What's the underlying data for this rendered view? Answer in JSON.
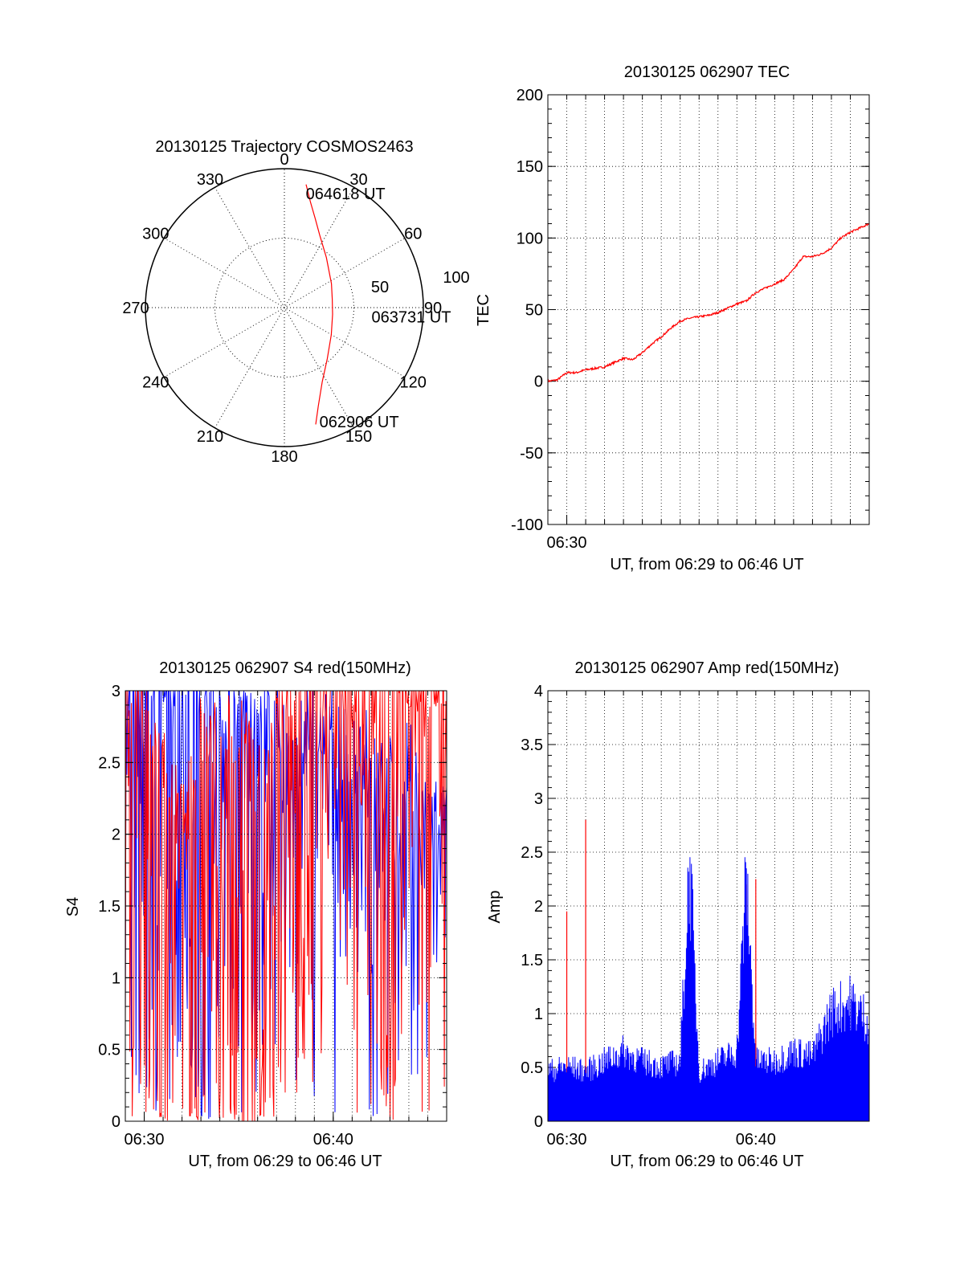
{
  "colors": {
    "red": "#ff0000",
    "blue": "#0000ff",
    "axis": "#000000",
    "grid": "#000000",
    "background": "#ffffff"
  },
  "chart_data": [
    {
      "id": "trajectory",
      "type": "polar",
      "title": "20130125 Trajectory COSMOS2463",
      "azimuth_labels": [
        "0",
        "30",
        "60",
        "90",
        "120",
        "150",
        "180",
        "210",
        "240",
        "270",
        "300",
        "330"
      ],
      "radial_labels": [
        "50",
        "100"
      ],
      "grid": true,
      "series": [
        {
          "color": "red",
          "points": [
            {
              "az": 10,
              "zen": 90
            },
            {
              "az": 14,
              "zen": 78
            },
            {
              "az": 19,
              "zen": 68
            },
            {
              "az": 26,
              "zen": 58
            },
            {
              "az": 40,
              "zen": 47
            },
            {
              "az": 63,
              "zen": 38
            },
            {
              "az": 80,
              "zen": 35
            },
            {
              "az": 98,
              "zen": 35
            },
            {
              "az": 120,
              "zen": 39
            },
            {
              "az": 140,
              "zen": 48
            },
            {
              "az": 153,
              "zen": 60
            },
            {
              "az": 161,
              "zen": 75
            },
            {
              "az": 165,
              "zen": 87
            }
          ]
        }
      ],
      "annotations": [
        {
          "text": "064618 UT",
          "az": 14,
          "zen": 84
        },
        {
          "text": "063731 UT",
          "az": 96,
          "zen": 68
        },
        {
          "text": "062906 UT",
          "az": 160,
          "zen": 88
        }
      ]
    },
    {
      "id": "tec",
      "type": "line",
      "title": "20130125 062907 TEC",
      "xlabel": "UT, from 06:29 to 06:46 UT",
      "ylabel": "TEC",
      "xlim": [
        "06:29",
        "06:46"
      ],
      "ylim": [
        -100,
        200
      ],
      "x_ticks": [
        "06:30"
      ],
      "y_ticks": [
        "-100",
        "-50",
        "0",
        "50",
        "100",
        "150",
        "200"
      ],
      "grid": true,
      "series": [
        {
          "color": "red",
          "x": [
            "06:29:00",
            "06:29:30",
            "06:30:00",
            "06:30:30",
            "06:31:00",
            "06:31:30",
            "06:32:00",
            "06:32:30",
            "06:33:00",
            "06:33:30",
            "06:34:00",
            "06:34:30",
            "06:35:00",
            "06:35:30",
            "06:36:00",
            "06:36:30",
            "06:37:00",
            "06:37:30",
            "06:38:00",
            "06:38:30",
            "06:39:00",
            "06:39:30",
            "06:40:00",
            "06:40:30",
            "06:41:00",
            "06:41:30",
            "06:42:00",
            "06:42:30",
            "06:43:00",
            "06:43:30",
            "06:44:00",
            "06:44:30",
            "06:45:00",
            "06:45:30",
            "06:46:00"
          ],
          "values": [
            0,
            1,
            6,
            6,
            8,
            9,
            10,
            13,
            16,
            15,
            20,
            26,
            31,
            37,
            42,
            44,
            45,
            46,
            48,
            51,
            54,
            56,
            62,
            65,
            68,
            71,
            78,
            87,
            87,
            89,
            93,
            100,
            104,
            107,
            110
          ]
        }
      ]
    },
    {
      "id": "s4",
      "type": "line",
      "title": "20130125 062907 S4 red(150MHz)",
      "xlabel": "UT, from 06:29 to 06:46 UT",
      "ylabel": "S4",
      "xlim": [
        "06:29",
        "06:46"
      ],
      "ylim": [
        0,
        3
      ],
      "x_ticks": [
        "06:30",
        "06:40"
      ],
      "y_ticks": [
        "0",
        "0.5",
        "1",
        "1.5",
        "2",
        "2.5",
        "3"
      ],
      "grid": true,
      "series": [
        {
          "color": "red",
          "x": [
            "06:29:00",
            "06:30:00",
            "06:31:00",
            "06:32:00",
            "06:33:00",
            "06:34:00",
            "06:35:00",
            "06:36:00",
            "06:37:00",
            "06:38:00",
            "06:39:00",
            "06:40:00",
            "06:41:00",
            "06:42:00",
            "06:43:00",
            "06:44:00",
            "06:45:00",
            "06:46:00"
          ],
          "values": [
            3,
            2.6,
            2.2,
            1.9,
            2.4,
            2.3,
            2.5,
            2.0,
            2.7,
            2.8,
            3.0,
            3.0,
            2.8,
            2.9,
            3.0,
            2.9,
            2.8,
            2.9
          ],
          "dropouts": [
            1.2,
            0.5,
            0.0,
            0.3,
            0.0,
            1.5,
            0.0,
            0.0,
            0.4,
            0.8,
            0.3,
            2.0,
            1.6,
            1.9,
            0.0,
            1.6,
            1.8,
            2.3
          ]
        },
        {
          "color": "blue",
          "x": [
            "06:29:00",
            "06:30:00",
            "06:31:00",
            "06:32:00",
            "06:33:00",
            "06:34:00",
            "06:35:00",
            "06:36:00",
            "06:37:00",
            "06:38:00",
            "06:39:00",
            "06:40:00",
            "06:41:00",
            "06:42:00",
            "06:43:00",
            "06:44:00",
            "06:45:00",
            "06:46:00"
          ],
          "values": [
            3,
            3.0,
            2.8,
            2.9,
            2.6,
            2.7,
            2.5,
            2.6,
            2.5,
            2.4,
            2.5,
            2.5,
            2.2,
            2.3,
            2.1,
            2.2,
            1.9,
            1.8
          ],
          "dropouts": [
            2.0,
            1.6,
            0.0,
            1.5,
            0.0,
            1.4,
            0.6,
            0.9,
            1.4,
            0.6,
            1.3,
            1.6,
            1.5,
            1.3,
            1.8,
            1.5,
            1.4,
            1.3
          ]
        }
      ]
    },
    {
      "id": "amp",
      "type": "line",
      "title": "20130125 062907 Amp red(150MHz)",
      "xlabel": "UT, from 06:29 to 06:46 UT",
      "ylabel": "Amp",
      "xlim": [
        "06:29",
        "06:46"
      ],
      "ylim": [
        0,
        4
      ],
      "x_ticks": [
        "06:30",
        "06:40"
      ],
      "y_ticks": [
        "0",
        "0.5",
        "1",
        "1.5",
        "2",
        "2.5",
        "3",
        "3.5",
        "4"
      ],
      "grid": true,
      "series": [
        {
          "color": "blue",
          "x": [
            "06:29:00",
            "06:30:00",
            "06:31:00",
            "06:32:00",
            "06:33:00",
            "06:34:00",
            "06:35:00",
            "06:36:00",
            "06:36:30",
            "06:37:00",
            "06:38:00",
            "06:39:00",
            "06:39:30",
            "06:40:00",
            "06:41:00",
            "06:42:00",
            "06:43:00",
            "06:44:00",
            "06:45:00",
            "06:46:00"
          ],
          "values": [
            0.5,
            0.55,
            0.5,
            0.6,
            0.7,
            0.6,
            0.55,
            0.6,
            2.6,
            0.5,
            0.6,
            0.7,
            2.45,
            0.6,
            0.6,
            0.7,
            0.65,
            1.1,
            1.2,
            1.0
          ]
        },
        {
          "color": "red",
          "x": [
            "06:30:00",
            "06:31:00",
            "06:36:30",
            "06:39:30",
            "06:40:00"
          ],
          "values": [
            1.95,
            2.8,
            1.7,
            2.2,
            2.25
          ]
        }
      ]
    }
  ]
}
